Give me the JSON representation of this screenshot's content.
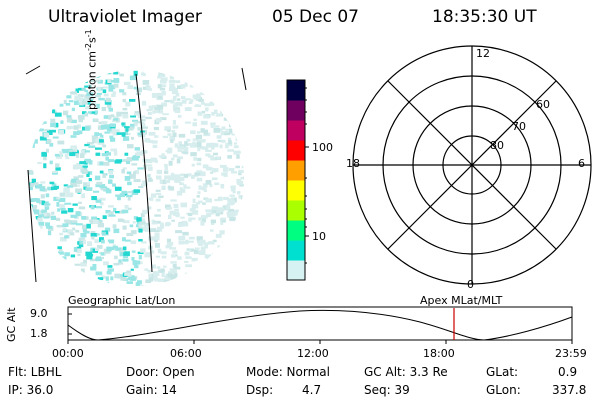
{
  "header": {
    "title": "Ultraviolet Imager",
    "date": "05 Dec 07",
    "time": "18:35:30 UT"
  },
  "colorbar": {
    "tick_labels": [
      "100",
      "10"
    ],
    "unit_base": "photon cm",
    "unit_exp1": "-2",
    "unit_mid": "s",
    "unit_exp2": "-1",
    "colors": [
      "#d6f2f2",
      "#00e0d0",
      "#00ff80",
      "#aaff00",
      "#ffff00",
      "#ffa000",
      "#ff0000",
      "#c00060",
      "#700060",
      "#000040"
    ]
  },
  "polar": {
    "mlt_labels": {
      "top": "12",
      "left": "18",
      "right": "6",
      "bottom": "0"
    },
    "lat_labels": [
      "60",
      "70",
      "80"
    ]
  },
  "timeline": {
    "left_title": "Geographic Lat/Lon",
    "right_title": "Apex MLat/MLT",
    "y_axis_label": "GC Alt",
    "y_ticks": [
      "9.0",
      "1.8"
    ],
    "x_ticks": [
      "00:00",
      "06:00",
      "12:00",
      "18:00",
      "23:59"
    ],
    "cursor_color": "#cc0000"
  },
  "status": {
    "flt": "Flt: LBHL",
    "ip": "IP: 36.0",
    "door": "Door: Open",
    "gain": "Gain: 14",
    "mode": "Mode: Normal",
    "dsp_label": "Dsp:",
    "dsp_value": "4.7",
    "gc_alt": "GC Alt: 3.3 Re",
    "seq": "Seq: 39",
    "glat_label": "GLat:",
    "glat_value": "0.9",
    "glon_label": "GLon:",
    "glon_value": "337.8"
  }
}
